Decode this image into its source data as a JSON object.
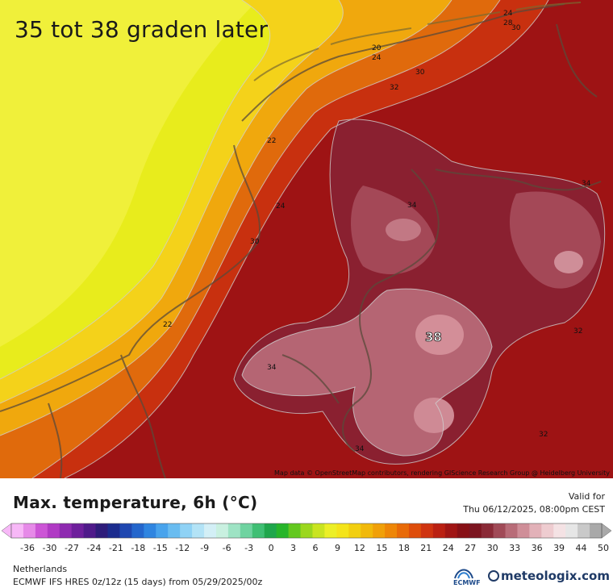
{
  "headline": "35 tot 38 graden later",
  "attribution": "Map data © OpenStreetMap contributors, rendering GIScience Research Group @ Heidelberg University",
  "contour_labels": [
    {
      "id": "c1",
      "text": "24"
    },
    {
      "id": "c2",
      "text": "28"
    },
    {
      "id": "c3",
      "text": "30"
    },
    {
      "id": "c4",
      "text": "20"
    },
    {
      "id": "c5",
      "text": "24"
    },
    {
      "id": "c6",
      "text": "30"
    },
    {
      "id": "c7",
      "text": "32"
    },
    {
      "id": "c8",
      "text": "22"
    },
    {
      "id": "c9",
      "text": "24"
    },
    {
      "id": "c10",
      "text": "34"
    },
    {
      "id": "c11",
      "text": "34"
    },
    {
      "id": "c12",
      "text": "30"
    },
    {
      "id": "c13",
      "text": "22"
    },
    {
      "id": "c14",
      "text": "34"
    },
    {
      "id": "c15",
      "text": "32"
    },
    {
      "id": "c16",
      "text": "34"
    },
    {
      "id": "c17",
      "text": "32"
    }
  ],
  "max_label": "38",
  "legend": {
    "title": "Max. temperature, 6h (°C)",
    "valid_label": "Valid for",
    "valid_date": "Thu 06/12/2025, 08:00pm CEST",
    "ticks": [
      "-36",
      "-30",
      "-27",
      "-24",
      "-21",
      "-18",
      "-15",
      "-12",
      "-9",
      "-6",
      "-3",
      "0",
      "3",
      "6",
      "9",
      "12",
      "15",
      "18",
      "21",
      "24",
      "27",
      "30",
      "33",
      "36",
      "39",
      "44",
      "50"
    ],
    "colors": [
      "#f7b8f7",
      "#e68ae8",
      "#cc55d6",
      "#b03ac4",
      "#8e2ab0",
      "#6e1f9c",
      "#4f1a8a",
      "#2e1c7a",
      "#1c2c8e",
      "#1f47b0",
      "#2466cc",
      "#2f85e0",
      "#48a3ec",
      "#69bcf0",
      "#8fd2f5",
      "#b3e3f6",
      "#d3eff6",
      "#c9f0e0",
      "#9ee3c4",
      "#6fd3a0",
      "#3fbf74",
      "#1fa64c",
      "#27b52a",
      "#63c81f",
      "#9bd71e",
      "#c9e420",
      "#ecef26",
      "#f4e41a",
      "#f2cf10",
      "#f1b90b",
      "#f0a009",
      "#ee8607",
      "#e86a08",
      "#de4d0b",
      "#cf3310",
      "#ba2012",
      "#a01514",
      "#871016",
      "#7c1520",
      "#8a2a37",
      "#a04a57",
      "#b86c78",
      "#cf8e98",
      "#e2b1b8",
      "#eeccd0",
      "#f4e2e4",
      "#e6e6e6",
      "#c9c9c9",
      "#a9a9a9"
    ],
    "region": "Netherlands",
    "model_run": "ECMWF IFS HRES 0z/12z (15 days) from 05/29/2025/00z",
    "ecmwf_label": "ECMWF",
    "brand": "meteologix.com"
  }
}
